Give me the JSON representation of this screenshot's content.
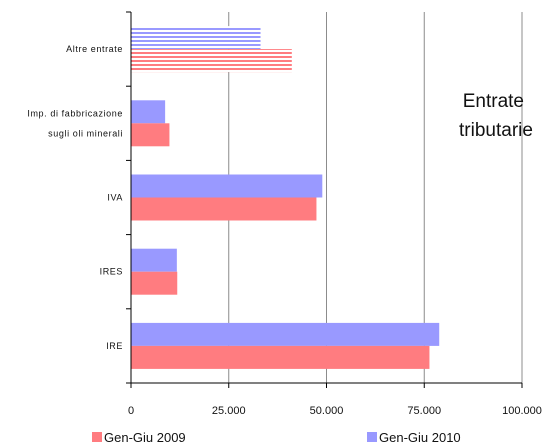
{
  "chart_data": {
    "type": "bar",
    "orientation": "horizontal",
    "title": [
      "Entrate",
      "tributarie"
    ],
    "categories": [
      [
        "Altre entrate"
      ],
      [
        "Imp. di fabbricazione",
        "sugli oli minerali"
      ],
      [
        "IVA"
      ],
      [
        "IRES"
      ],
      [
        "IRE"
      ]
    ],
    "series": [
      {
        "name": "Gen-Giu 2009",
        "color": "#ff7c80",
        "values": [
          41000,
          9700,
          47300,
          11700,
          76200
        ]
      },
      {
        "name": "Gen-Giu 2010",
        "color": "#9999ff",
        "values": [
          33000,
          8600,
          48800,
          11600,
          78700
        ]
      }
    ],
    "hatched_categories": [
      0
    ],
    "xlim": [
      0,
      100000
    ],
    "xticks": [
      0,
      25000,
      50000,
      75000,
      100000
    ],
    "xtick_labels": [
      "0",
      "25.000",
      "50.000",
      "75.000",
      "100.000"
    ],
    "grid": "vertical",
    "legend": "bottom"
  }
}
